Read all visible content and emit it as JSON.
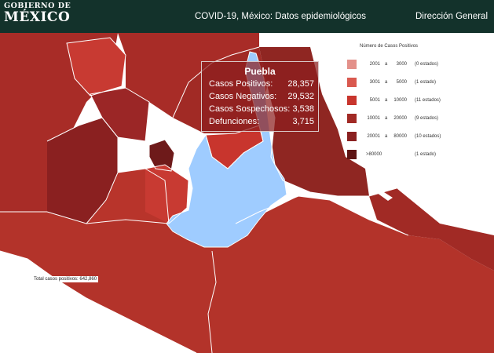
{
  "header": {
    "logo_line1": "GOBIERNO DE",
    "logo_line2": "MÉXICO",
    "title": "COVID-19, México: Datos epidemiológicos",
    "section": "Dirección General"
  },
  "colors": {
    "header_bg": "#13322b",
    "state_fill": "#b3332a",
    "highlight": "#9fccff",
    "dark_state": "#7e1e1e",
    "mid_state": "#9b2626",
    "light_state": "#c83a32"
  },
  "legend": {
    "title": "Número de Casos Positivos",
    "items": [
      {
        "low": "2001",
        "sep": "a",
        "high": "3000",
        "count": "(0 estados)",
        "color": "#e3918a"
      },
      {
        "low": "3001",
        "sep": "a",
        "high": "5000",
        "count": "(1 estado)",
        "color": "#d9594f"
      },
      {
        "low": "5001",
        "sep": "a",
        "high": "10000",
        "count": "(11 estados)",
        "color": "#c8352d"
      },
      {
        "low": "10001",
        "sep": "a",
        "high": "20000",
        "count": "(9 estados)",
        "color": "#a12a25"
      },
      {
        "low": "20001",
        "sep": "a",
        "high": "80000",
        "count": "(10 estados)",
        "color": "#8a2020"
      },
      {
        "low": ">80000",
        "sep": "",
        "high": "",
        "count": "(1 estado)",
        "color": "#5e1414"
      }
    ]
  },
  "tooltip": {
    "title": "Puebla",
    "rows": [
      {
        "label": "Casos Positivos:",
        "value": "28,357"
      },
      {
        "label": "Casos Negativos:",
        "value": "29,532"
      },
      {
        "label": "Casos Sospechosos:",
        "value": "3,538"
      },
      {
        "label": "Defunciones:",
        "value": "3,715"
      }
    ]
  },
  "total": "Total casos positivos: 642,860"
}
